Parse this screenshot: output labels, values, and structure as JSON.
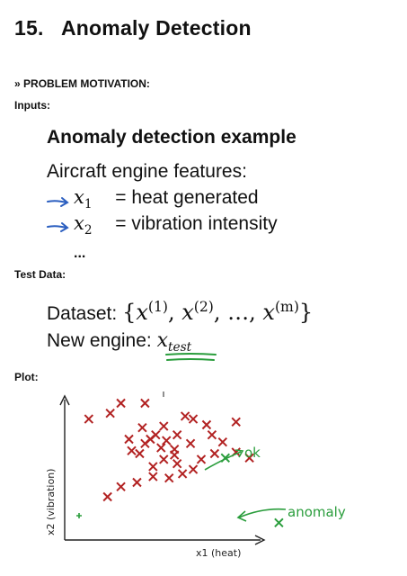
{
  "title": {
    "number": "15.",
    "text": "Anomaly Detection"
  },
  "motivation": {
    "icon": "double-chevron-right",
    "label": "PROBLEM MOTIVATION:"
  },
  "inputs": {
    "label": "Inputs:",
    "heading": "Anomaly detection example",
    "features_title": "Aircraft engine features:",
    "features": [
      {
        "var": "x",
        "sub": "1",
        "desc": "= heat generated"
      },
      {
        "var": "x",
        "sub": "2",
        "desc": "= vibration intensity"
      }
    ],
    "ellipsis": "..."
  },
  "test_data": {
    "label": "Test Data:",
    "dataset_label": "Dataset:",
    "dataset_terms": [
      {
        "var": "x",
        "sup": "(1)"
      },
      {
        "var": "x",
        "sup": "(2)"
      },
      {
        "var": "x",
        "sup": "(m)"
      }
    ],
    "new_engine_label": "New engine:",
    "new_engine_var": "x",
    "new_engine_sub": "test"
  },
  "plot": {
    "label": "Plot:",
    "y_axis_label": "x2 (vibration)",
    "x_axis_label": "x1 (heat)",
    "annotation_ok": "ok",
    "annotation_anomaly": "anomaly",
    "colors": {
      "points": "#b22222",
      "ink": "#2a9d3c",
      "axis": "#222222"
    }
  },
  "chart_data": {
    "type": "scatter",
    "xlabel": "x1 (heat)",
    "ylabel": "x2 (vibration)",
    "series": [
      {
        "x": [
          0.53,
          0.64,
          0.09,
          0.3,
          0.64,
          0.16,
          0.21,
          0.27,
          0.33,
          0.39,
          0.44,
          0.33,
          0.42,
          0.48,
          0.37,
          0.41,
          0.25,
          0.28,
          0.41,
          0.51,
          0.32,
          0.38,
          0.34,
          0.42,
          0.47,
          0.24,
          0.29,
          0.17,
          0.37,
          0.3,
          0.45,
          0.21,
          0.55,
          0.59,
          0.56,
          0.69,
          0.48,
          0.36
        ],
        "y": [
          0.8,
          0.82,
          0.84,
          0.67,
          0.61,
          0.3,
          0.37,
          0.4,
          0.44,
          0.43,
          0.46,
          0.51,
          0.53,
          0.49,
          0.56,
          0.59,
          0.62,
          0.6,
          0.63,
          0.56,
          0.7,
          0.69,
          0.73,
          0.73,
          0.67,
          0.7,
          0.78,
          0.88,
          0.79,
          0.95,
          0.86,
          0.95,
          0.73,
          0.68,
          0.6,
          0.57,
          0.84,
          0.64
        ]
      }
    ],
    "test_points": [
      {
        "name": "ok",
        "x": 0.6,
        "y": 0.57
      },
      {
        "name": "anomaly",
        "x": 0.8,
        "y": 0.12
      }
    ]
  }
}
